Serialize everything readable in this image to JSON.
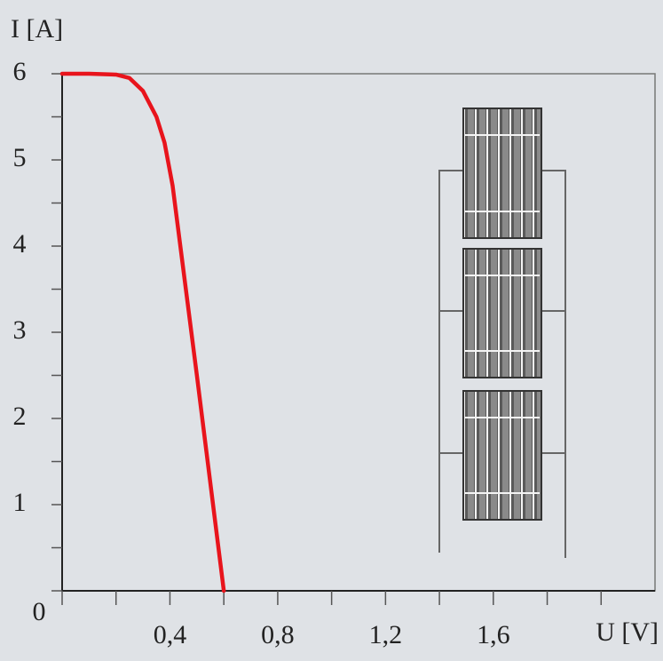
{
  "chart_data": {
    "type": "line",
    "y_label": "I [A]",
    "x_label": "U [V]",
    "x": [
      0,
      0.1,
      0.2,
      0.25,
      0.3,
      0.35,
      0.38,
      0.41,
      0.5,
      0.6
    ],
    "series": [
      {
        "color": "#e8141c",
        "values": [
          6,
          6,
          5.99,
          5.95,
          5.8,
          5.5,
          5.2,
          4.7,
          2.5,
          0
        ]
      }
    ],
    "xlim": [
      0,
      2.2
    ],
    "ylim": [
      0,
      6
    ],
    "xticks": [
      {
        "value": 0.4,
        "label": "0,4"
      },
      {
        "value": 0.8,
        "label": "0,8"
      },
      {
        "value": 1.2,
        "label": "1,2"
      },
      {
        "value": 1.6,
        "label": "1,6"
      }
    ],
    "xminorticks": [
      0,
      0.2,
      0.6,
      1.0,
      1.4,
      1.8,
      2.0
    ],
    "yticks": [
      0,
      1,
      2,
      3,
      4,
      5,
      6
    ],
    "yminorticks": [
      0.5,
      1.5,
      2.5,
      3.5,
      4.5,
      5.5
    ]
  }
}
